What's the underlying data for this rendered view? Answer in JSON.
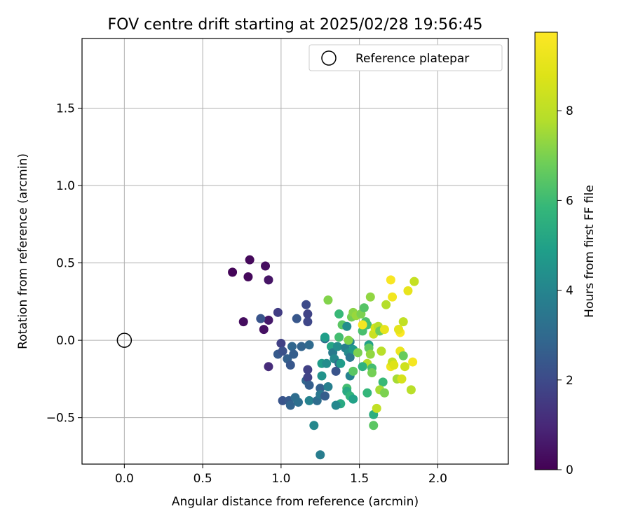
{
  "chart_data": {
    "type": "scatter",
    "title": "FOV centre drift starting at 2025/02/28 19:56:45",
    "xlabel": "Angular distance from reference (arcmin)",
    "ylabel": "Rotation from reference (arcmin)",
    "xlim": [
      -0.27,
      2.45
    ],
    "ylim": [
      -0.8,
      1.95
    ],
    "xticks": [
      0.0,
      0.5,
      1.0,
      1.5,
      2.0
    ],
    "yticks": [
      -0.5,
      0.0,
      0.5,
      1.0,
      1.5
    ],
    "xtick_labels": [
      "0.0",
      "0.5",
      "1.0",
      "1.5",
      "2.0"
    ],
    "ytick_labels": [
      "−0.5",
      "0.0",
      "0.5",
      "1.0",
      "1.5"
    ],
    "grid": true,
    "legend": {
      "location": "top-right",
      "entries": [
        "Reference platepar"
      ]
    },
    "reference_point": {
      "label": "Reference platepar",
      "x": 0.0,
      "y": 0.0
    },
    "colorbar": {
      "label": "Hours from first FF file",
      "colormap": "viridis",
      "range": [
        0,
        9.75
      ],
      "ticks": [
        0,
        2,
        4,
        6,
        8
      ],
      "tick_labels": [
        "0",
        "2",
        "4",
        "6",
        "8"
      ]
    },
    "points": [
      {
        "x": 0.69,
        "y": 0.44,
        "c": 0.1
      },
      {
        "x": 0.8,
        "y": 0.52,
        "c": 0.2
      },
      {
        "x": 0.79,
        "y": 0.41,
        "c": 0.2
      },
      {
        "x": 0.9,
        "y": 0.48,
        "c": 0.3
      },
      {
        "x": 0.92,
        "y": 0.39,
        "c": 0.5
      },
      {
        "x": 0.76,
        "y": 0.12,
        "c": 0.3
      },
      {
        "x": 0.89,
        "y": 0.07,
        "c": 0.4
      },
      {
        "x": 0.92,
        "y": 0.13,
        "c": 0.6
      },
      {
        "x": 0.92,
        "y": -0.17,
        "c": 1.1
      },
      {
        "x": 0.87,
        "y": 0.14,
        "c": 2.3
      },
      {
        "x": 0.98,
        "y": 0.18,
        "c": 1.6
      },
      {
        "x": 1.0,
        "y": -0.02,
        "c": 1.7
      },
      {
        "x": 0.98,
        "y": -0.09,
        "c": 2.5
      },
      {
        "x": 1.01,
        "y": -0.07,
        "c": 2.2
      },
      {
        "x": 1.04,
        "y": -0.12,
        "c": 2.7
      },
      {
        "x": 1.06,
        "y": -0.16,
        "c": 2.4
      },
      {
        "x": 1.07,
        "y": -0.04,
        "c": 2.9
      },
      {
        "x": 1.08,
        "y": -0.09,
        "c": 2.6
      },
      {
        "x": 1.1,
        "y": 0.14,
        "c": 2.4
      },
      {
        "x": 1.13,
        "y": -0.04,
        "c": 2.8
      },
      {
        "x": 1.16,
        "y": 0.23,
        "c": 2.0
      },
      {
        "x": 1.17,
        "y": 0.17,
        "c": 1.8
      },
      {
        "x": 1.17,
        "y": 0.12,
        "c": 1.9
      },
      {
        "x": 1.18,
        "y": -0.03,
        "c": 3.0
      },
      {
        "x": 1.17,
        "y": -0.19,
        "c": 1.7
      },
      {
        "x": 1.16,
        "y": -0.26,
        "c": 2.9
      },
      {
        "x": 1.17,
        "y": -0.24,
        "c": 1.8
      },
      {
        "x": 1.18,
        "y": -0.29,
        "c": 2.6
      },
      {
        "x": 1.01,
        "y": -0.39,
        "c": 2.3
      },
      {
        "x": 1.05,
        "y": -0.39,
        "c": 2.5
      },
      {
        "x": 1.06,
        "y": -0.42,
        "c": 2.8
      },
      {
        "x": 1.09,
        "y": -0.37,
        "c": 3.1
      },
      {
        "x": 1.11,
        "y": -0.4,
        "c": 3.2
      },
      {
        "x": 1.18,
        "y": -0.39,
        "c": 3.9
      },
      {
        "x": 1.23,
        "y": -0.39,
        "c": 3.1
      },
      {
        "x": 1.25,
        "y": -0.31,
        "c": 2.7
      },
      {
        "x": 1.25,
        "y": -0.35,
        "c": 3.5
      },
      {
        "x": 1.28,
        "y": -0.36,
        "c": 2.6
      },
      {
        "x": 1.3,
        "y": -0.3,
        "c": 3.8
      },
      {
        "x": 1.26,
        "y": -0.23,
        "c": 4.5
      },
      {
        "x": 1.26,
        "y": -0.15,
        "c": 4.8
      },
      {
        "x": 1.29,
        "y": -0.15,
        "c": 4.3
      },
      {
        "x": 1.28,
        "y": 0.01,
        "c": 3.2
      },
      {
        "x": 1.28,
        "y": 0.02,
        "c": 4.9
      },
      {
        "x": 1.32,
        "y": -0.04,
        "c": 5.2
      },
      {
        "x": 1.33,
        "y": -0.08,
        "c": 3.6
      },
      {
        "x": 1.34,
        "y": -0.12,
        "c": 4.1
      },
      {
        "x": 1.35,
        "y": -0.2,
        "c": 2.3
      },
      {
        "x": 1.36,
        "y": -0.04,
        "c": 4.3
      },
      {
        "x": 1.37,
        "y": -0.15,
        "c": 3.0
      },
      {
        "x": 1.38,
        "y": -0.15,
        "c": 4.8
      },
      {
        "x": 1.37,
        "y": 0.02,
        "c": 6.1
      },
      {
        "x": 1.39,
        "y": 0.1,
        "c": 6.5
      },
      {
        "x": 1.42,
        "y": 0.09,
        "c": 4.3
      },
      {
        "x": 1.41,
        "y": -0.05,
        "c": 3.8
      },
      {
        "x": 1.44,
        "y": -0.01,
        "c": 4.0
      },
      {
        "x": 1.43,
        "y": -0.08,
        "c": 4.2
      },
      {
        "x": 1.44,
        "y": -0.11,
        "c": 3.5
      },
      {
        "x": 1.44,
        "y": -0.23,
        "c": 3.9
      },
      {
        "x": 1.45,
        "y": 0.15,
        "c": 6.9
      },
      {
        "x": 1.46,
        "y": 0.18,
        "c": 7.2
      },
      {
        "x": 1.48,
        "y": 0.16,
        "c": 7.4
      },
      {
        "x": 1.43,
        "y": 0.0,
        "c": 7.1
      },
      {
        "x": 1.46,
        "y": -0.06,
        "c": 4.7
      },
      {
        "x": 1.46,
        "y": -0.2,
        "c": 6.5
      },
      {
        "x": 1.49,
        "y": -0.08,
        "c": 7.0
      },
      {
        "x": 1.3,
        "y": 0.26,
        "c": 7.1
      },
      {
        "x": 1.37,
        "y": 0.17,
        "c": 5.9
      },
      {
        "x": 1.51,
        "y": 0.17,
        "c": 7.0
      },
      {
        "x": 1.53,
        "y": 0.21,
        "c": 6.4
      },
      {
        "x": 1.57,
        "y": 0.28,
        "c": 7.3
      },
      {
        "x": 1.54,
        "y": 0.12,
        "c": 6.3
      },
      {
        "x": 1.52,
        "y": 0.06,
        "c": 6.2
      },
      {
        "x": 1.55,
        "y": 0.1,
        "c": 6.1
      },
      {
        "x": 1.52,
        "y": 0.1,
        "c": 9.5
      },
      {
        "x": 1.56,
        "y": -0.03,
        "c": 5.0
      },
      {
        "x": 1.56,
        "y": -0.05,
        "c": 6.6
      },
      {
        "x": 1.57,
        "y": -0.09,
        "c": 7.3
      },
      {
        "x": 1.55,
        "y": -0.15,
        "c": 7.8
      },
      {
        "x": 1.52,
        "y": -0.17,
        "c": 5.6
      },
      {
        "x": 1.58,
        "y": -0.18,
        "c": 6.1
      },
      {
        "x": 1.58,
        "y": -0.21,
        "c": 6.9
      },
      {
        "x": 1.59,
        "y": 0.04,
        "c": 8.3
      },
      {
        "x": 1.6,
        "y": 0.08,
        "c": 8.6
      },
      {
        "x": 1.62,
        "y": 0.09,
        "c": 7.9
      },
      {
        "x": 1.63,
        "y": 0.06,
        "c": 6.8
      },
      {
        "x": 1.64,
        "y": -0.07,
        "c": 7.9
      },
      {
        "x": 1.65,
        "y": -0.27,
        "c": 5.9
      },
      {
        "x": 1.63,
        "y": -0.32,
        "c": 7.6
      },
      {
        "x": 1.66,
        "y": -0.34,
        "c": 7.0
      },
      {
        "x": 1.59,
        "y": -0.48,
        "c": 5.5
      },
      {
        "x": 1.59,
        "y": -0.55,
        "c": 6.5
      },
      {
        "x": 1.61,
        "y": -0.44,
        "c": 8.1
      },
      {
        "x": 1.55,
        "y": -0.34,
        "c": 5.8
      },
      {
        "x": 1.42,
        "y": -0.31,
        "c": 6.1
      },
      {
        "x": 1.42,
        "y": -0.33,
        "c": 5.3
      },
      {
        "x": 1.44,
        "y": -0.36,
        "c": 5.7
      },
      {
        "x": 1.46,
        "y": -0.38,
        "c": 5.0
      },
      {
        "x": 1.38,
        "y": -0.41,
        "c": 5.3
      },
      {
        "x": 1.35,
        "y": -0.42,
        "c": 4.1
      },
      {
        "x": 1.21,
        "y": -0.55,
        "c": 4.1
      },
      {
        "x": 1.25,
        "y": -0.74,
        "c": 3.7
      },
      {
        "x": 1.66,
        "y": 0.07,
        "c": 9.1
      },
      {
        "x": 1.67,
        "y": 0.23,
        "c": 7.8
      },
      {
        "x": 1.7,
        "y": 0.39,
        "c": 9.6
      },
      {
        "x": 1.71,
        "y": 0.28,
        "c": 9.4
      },
      {
        "x": 1.7,
        "y": -0.17,
        "c": 9.3
      },
      {
        "x": 1.71,
        "y": -0.14,
        "c": 8.2
      },
      {
        "x": 1.72,
        "y": -0.16,
        "c": 8.8
      },
      {
        "x": 1.74,
        "y": -0.25,
        "c": 7.6
      },
      {
        "x": 1.75,
        "y": 0.07,
        "c": 8.4
      },
      {
        "x": 1.76,
        "y": 0.05,
        "c": 9.7
      },
      {
        "x": 1.76,
        "y": -0.07,
        "c": 9.2
      },
      {
        "x": 1.77,
        "y": -0.25,
        "c": 8.6
      },
      {
        "x": 1.78,
        "y": -0.1,
        "c": 6.7
      },
      {
        "x": 1.78,
        "y": 0.12,
        "c": 8.1
      },
      {
        "x": 1.79,
        "y": -0.17,
        "c": 8.4
      },
      {
        "x": 1.81,
        "y": 0.32,
        "c": 9.1
      },
      {
        "x": 1.83,
        "y": -0.32,
        "c": 7.9
      },
      {
        "x": 1.84,
        "y": -0.14,
        "c": 9.5
      },
      {
        "x": 1.85,
        "y": 0.38,
        "c": 8.2
      },
      {
        "x": 1.75,
        "y": 0.07,
        "c": 9.0
      }
    ]
  }
}
